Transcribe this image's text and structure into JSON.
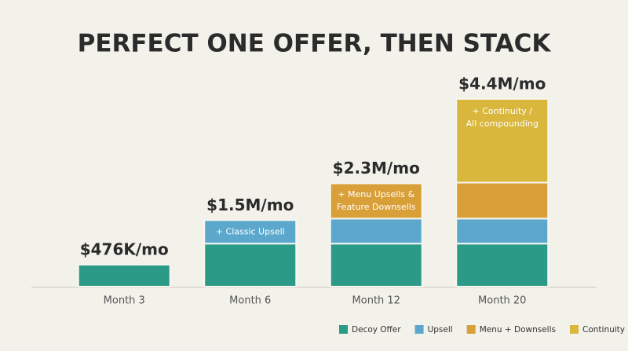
{
  "chart_data": {
    "type": "stacked-bar",
    "title": "PERFECT ONE OFFER, THEN STACK",
    "categories": [
      "Month 3",
      "Month 6",
      "Month 12",
      "Month 20"
    ],
    "totals": [
      "$476K/mo",
      "$1.5M/mo",
      "$2.3M/mo",
      "$4.4M/mo"
    ],
    "series": [
      {
        "name": "Decoy Offer",
        "color": "#2b9a87",
        "values": [
          28,
          55,
          55,
          55
        ],
        "labels": [
          null,
          null,
          null,
          null
        ]
      },
      {
        "name": "Upsell",
        "color": "#5ba8cc",
        "values": [
          null,
          30,
          32,
          32
        ],
        "labels": [
          null,
          [
            "+ Classic Upsell"
          ],
          null,
          null
        ]
      },
      {
        "name": "Menu + Downsells",
        "color": "#d99f38",
        "values": [
          null,
          null,
          45,
          46
        ],
        "labels": [
          null,
          null,
          [
            "+ Menu Upsells &",
            "Feature Downsells"
          ],
          null
        ]
      },
      {
        "name": "Continuity",
        "color": "#d9b63c",
        "values": [
          null,
          null,
          null,
          107
        ],
        "labels": [
          null,
          null,
          null,
          [
            "+ Continuity /",
            "All compounding"
          ]
        ]
      }
    ],
    "ylim": [
      0,
      250
    ]
  }
}
